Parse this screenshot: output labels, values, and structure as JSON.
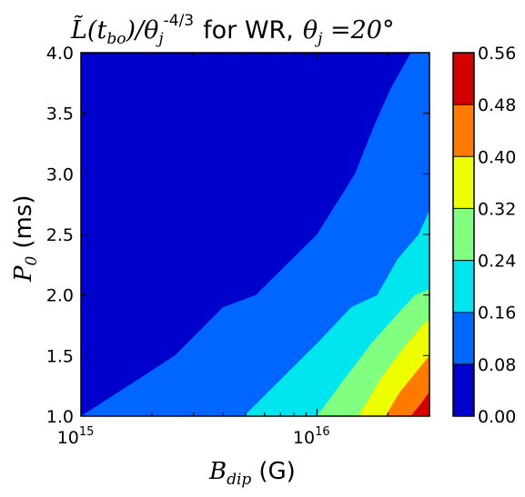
{
  "chart_data": {
    "type": "heatmap",
    "subtype": "filled-contour",
    "title": {
      "math_prefix": "L̃(t",
      "math_sub": "bo",
      "math_mid": ")/θ",
      "math_mid_sub": "j",
      "math_sup": "-4/3",
      "text": "for WR,",
      "math_suffix": "θ",
      "math_suffix_sub": "j",
      "math_tail": " =20°"
    },
    "xlabel": {
      "math": "B",
      "math_sub": "dip",
      "text": "(G)"
    },
    "ylabel": {
      "math": "P",
      "math_sub": "0",
      "text": "(ms)"
    },
    "x_scale": "log",
    "xlim": [
      1000000000000000.0,
      3e+16
    ],
    "ylim": [
      1.0,
      4.0
    ],
    "x_ticks": [
      {
        "value": 1000000000000000.0,
        "base": "10",
        "exp": "15"
      },
      {
        "value": 1e+16,
        "base": "10",
        "exp": "16"
      }
    ],
    "y_ticks": [
      {
        "value": 1.0,
        "label": "1.0"
      },
      {
        "value": 1.5,
        "label": "1.5"
      },
      {
        "value": 2.0,
        "label": "2.0"
      },
      {
        "value": 2.5,
        "label": "2.5"
      },
      {
        "value": 3.0,
        "label": "3.0"
      },
      {
        "value": 3.5,
        "label": "3.5"
      },
      {
        "value": 4.0,
        "label": "4.0"
      }
    ],
    "colorbar": {
      "levels": [
        "0.00",
        "0.08",
        "0.16",
        "0.24",
        "0.32",
        "0.40",
        "0.48",
        "0.56"
      ],
      "colors": [
        "#0000cc",
        "#0066ff",
        "#00e5ee",
        "#80ff80",
        "#eeff00",
        "#ff7a00",
        "#d40000"
      ]
    },
    "contour_boundaries": [
      {
        "level": "0.08",
        "points": [
          [
            1000000000000000.0,
            1.0
          ],
          [
            2500000000000000.0,
            1.5
          ],
          [
            4000000000000000.0,
            1.9
          ],
          [
            5500000000000000.0,
            2.0
          ],
          [
            1e+16,
            2.5
          ],
          [
            1.45e+16,
            3.0
          ],
          [
            1.75e+16,
            3.4
          ],
          [
            2.05e+16,
            3.7
          ],
          [
            2.5e+16,
            4.0
          ]
        ]
      },
      {
        "level": "0.16",
        "points": [
          [
            4900000000000000.0,
            1.0
          ],
          [
            7000000000000000.0,
            1.3
          ],
          [
            1e+16,
            1.6
          ],
          [
            1.4e+16,
            1.9
          ],
          [
            1.8e+16,
            2.0
          ],
          [
            2.2e+16,
            2.3
          ],
          [
            2.7e+16,
            2.5
          ],
          [
            3e+16,
            2.7
          ]
        ]
      },
      {
        "level": "0.24",
        "points": [
          [
            1e+16,
            1.0
          ],
          [
            1.3e+16,
            1.3
          ],
          [
            1.7e+16,
            1.6
          ],
          [
            2.1e+16,
            1.8
          ],
          [
            2.6e+16,
            2.0
          ],
          [
            3e+16,
            2.05
          ]
        ]
      },
      {
        "level": "0.32",
        "points": [
          [
            1.5e+16,
            1.0
          ],
          [
            1.85e+16,
            1.3
          ],
          [
            2.3e+16,
            1.55
          ],
          [
            2.8e+16,
            1.75
          ],
          [
            3e+16,
            1.8
          ]
        ]
      },
      {
        "level": "0.40",
        "points": [
          [
            1.95e+16,
            1.0
          ],
          [
            2.25e+16,
            1.2
          ],
          [
            2.6e+16,
            1.35
          ],
          [
            3e+16,
            1.5
          ]
        ]
      },
      {
        "level": "0.48",
        "points": [
          [
            2.5e+16,
            1.0
          ],
          [
            2.75e+16,
            1.1
          ],
          [
            3e+16,
            1.2
          ]
        ]
      }
    ]
  }
}
